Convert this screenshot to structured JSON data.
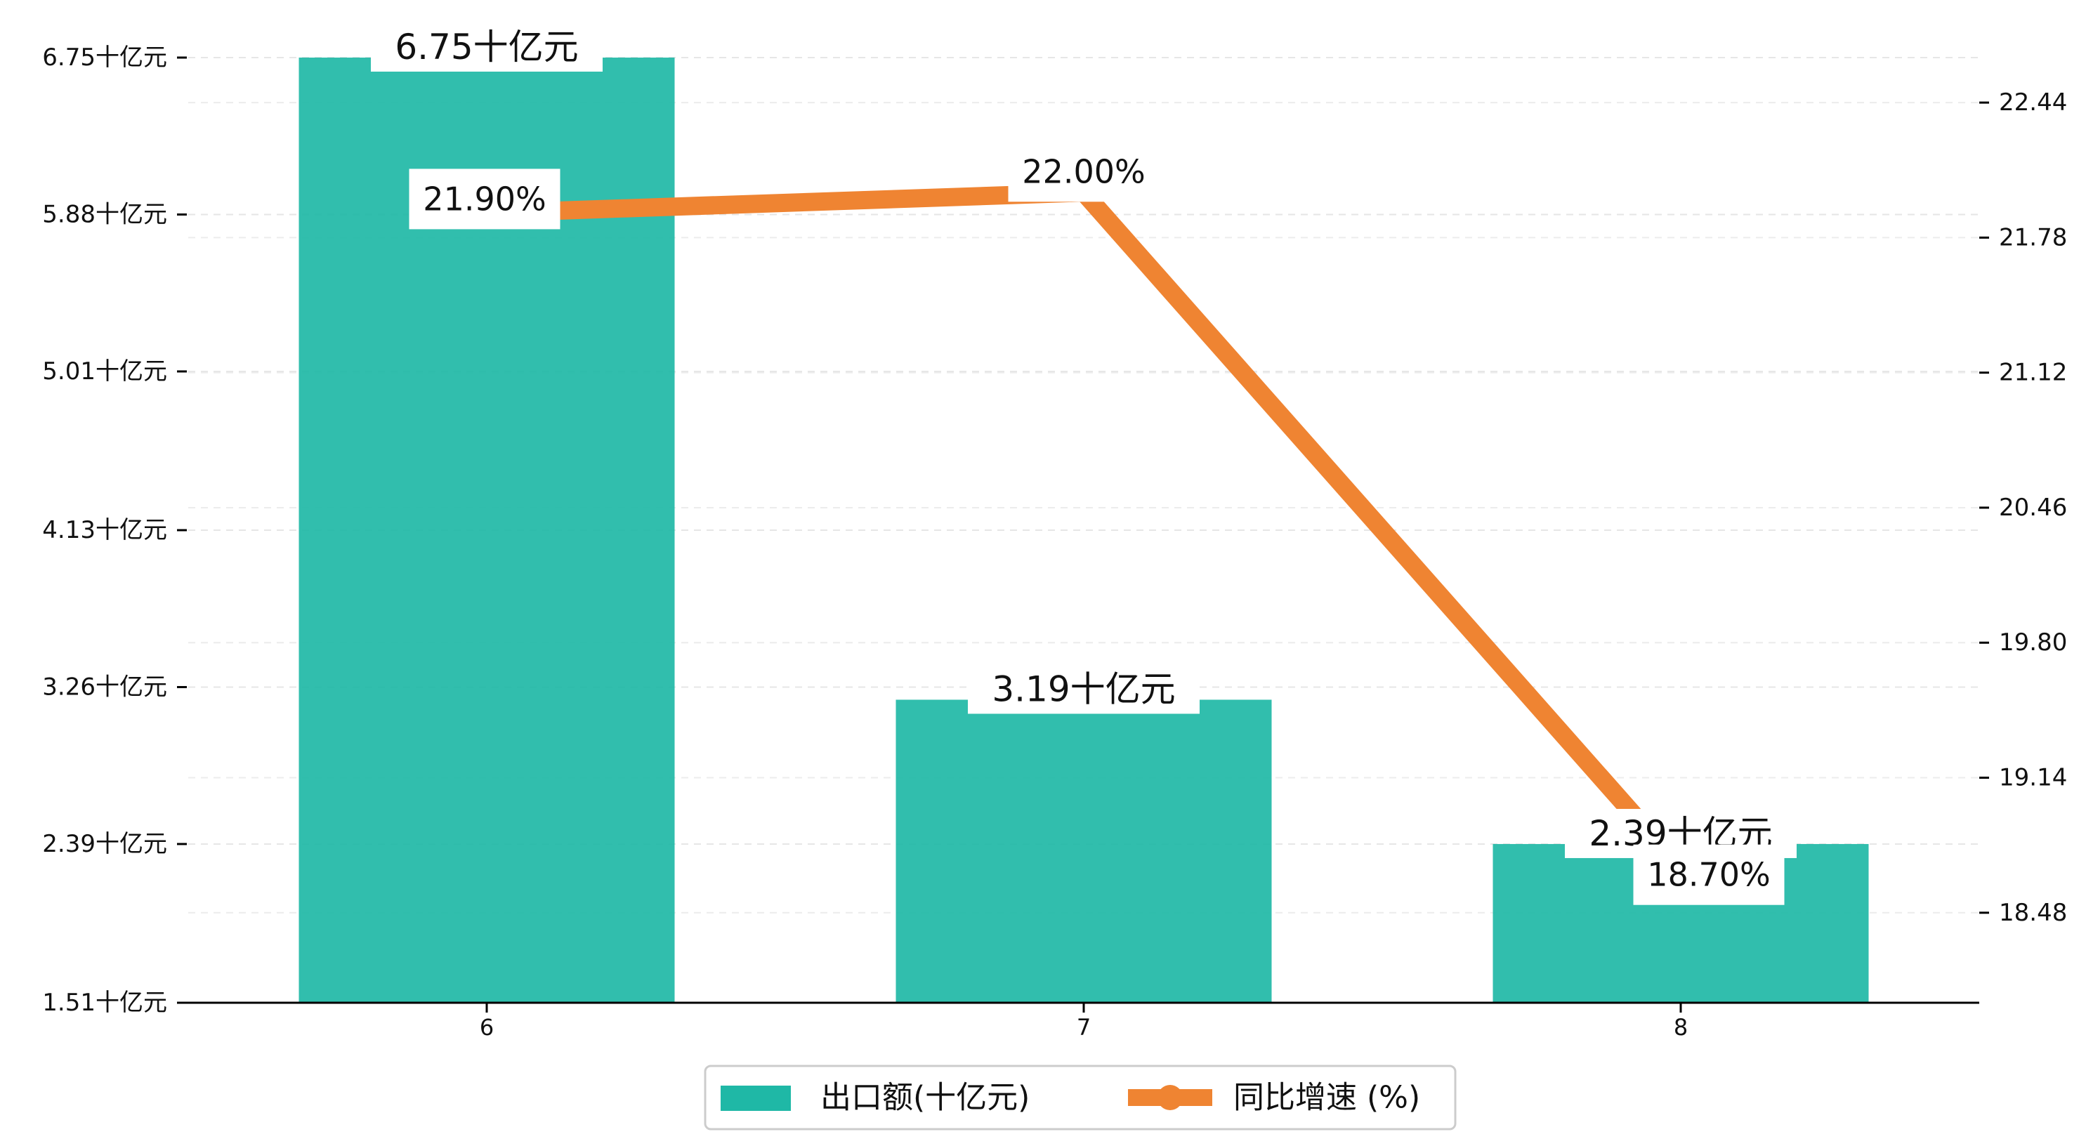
{
  "chart_data": {
    "type": "bar",
    "categories": [
      "6",
      "7",
      "8"
    ],
    "series": [
      {
        "name": "出口额(十亿元)",
        "chart": "bar",
        "axis": "left",
        "values": [
          6.75,
          3.19,
          2.39
        ],
        "labels": [
          "6.75十亿元",
          "3.19十亿元",
          "2.39十亿元"
        ],
        "color": "#1fb8a6"
      },
      {
        "name": "同比增速 (%)",
        "chart": "line",
        "axis": "right",
        "values": [
          21.9,
          22.0,
          18.7
        ],
        "labels": [
          "21.90%",
          "22.00%",
          "18.70%"
        ],
        "color": "#ef8432"
      }
    ],
    "y_left": {
      "ticks": [
        1.51,
        2.39,
        3.26,
        4.13,
        5.01,
        5.88,
        6.75
      ],
      "tick_labels": [
        "1.51十亿元",
        "2.39十亿元",
        "3.26十亿元",
        "4.13十亿元",
        "5.01十亿元",
        "5.88十亿元",
        "6.75十亿元"
      ],
      "ylim": [
        1.51,
        6.75
      ]
    },
    "y_right": {
      "ticks": [
        18.48,
        19.14,
        19.8,
        20.46,
        21.12,
        21.78,
        22.44
      ],
      "tick_labels": [
        "18.48",
        "19.14",
        "19.80",
        "20.46",
        "21.12",
        "21.78",
        "22.44"
      ],
      "ylim": [
        18.04,
        22.66
      ]
    },
    "grid": "horizontal dashed",
    "legend_position": "bottom-center"
  }
}
